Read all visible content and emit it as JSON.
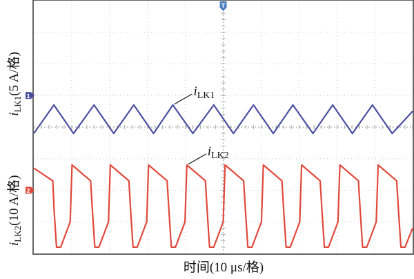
{
  "chart_data": {
    "type": "line",
    "x": {
      "label": "时间(10 μs/格)",
      "unit": "μs",
      "range": [
        0,
        100
      ],
      "major_step": 10
    },
    "grid": true,
    "ch1": {
      "italic": "i",
      "sub": "LK1",
      "scale_suffix": "(5 A/格)",
      "color": "#4a4fa0",
      "marker_glyph": "1",
      "points": [
        [
          0,
          -1.2
        ],
        [
          5.3,
          -0.3
        ],
        [
          10.5,
          -1.2
        ],
        [
          15.9,
          -0.3
        ],
        [
          21.1,
          -1.2
        ],
        [
          26.4,
          -0.3
        ],
        [
          31.6,
          -1.2
        ],
        [
          36.7,
          -0.3
        ],
        [
          42.0,
          -1.2
        ],
        [
          47.5,
          -0.3
        ],
        [
          52.7,
          -1.2
        ],
        [
          58.0,
          -0.3
        ],
        [
          63.2,
          -1.2
        ],
        [
          68.4,
          -0.3
        ],
        [
          73.7,
          -1.2
        ],
        [
          78.9,
          -0.3
        ],
        [
          84.1,
          -1.2
        ],
        [
          89.4,
          -0.3
        ],
        [
          94.6,
          -1.2
        ],
        [
          100,
          -0.5
        ]
      ]
    },
    "ch2": {
      "italic": "i",
      "sub": "LK2",
      "scale_suffix": "(10 A/格)",
      "color": "#e0483a",
      "marker_glyph": "2",
      "points": [
        [
          0,
          0.7
        ],
        [
          5.0,
          0.3
        ],
        [
          5.4,
          -0.7
        ],
        [
          6.0,
          -1.8
        ],
        [
          7.1,
          -1.8
        ],
        [
          9.6,
          -1.0
        ],
        [
          10.1,
          0.8
        ],
        [
          15.0,
          0.3
        ],
        [
          15.5,
          -0.7
        ],
        [
          16.1,
          -1.8
        ],
        [
          17.2,
          -1.8
        ],
        [
          19.7,
          -1.0
        ],
        [
          20.2,
          0.8
        ],
        [
          25.1,
          0.3
        ],
        [
          25.6,
          -0.7
        ],
        [
          26.2,
          -1.8
        ],
        [
          27.3,
          -1.8
        ],
        [
          29.8,
          -1.0
        ],
        [
          30.3,
          0.8
        ],
        [
          35.2,
          0.3
        ],
        [
          35.7,
          -0.7
        ],
        [
          36.3,
          -1.8
        ],
        [
          37.4,
          -1.8
        ],
        [
          39.9,
          -1.0
        ],
        [
          40.4,
          0.8
        ],
        [
          45.3,
          0.3
        ],
        [
          45.8,
          -0.7
        ],
        [
          46.4,
          -1.8
        ],
        [
          47.5,
          -1.8
        ],
        [
          50.0,
          -1.0
        ],
        [
          50.5,
          0.8
        ],
        [
          55.4,
          0.3
        ],
        [
          55.9,
          -0.7
        ],
        [
          56.5,
          -1.8
        ],
        [
          57.6,
          -1.8
        ],
        [
          60.1,
          -1.0
        ],
        [
          60.6,
          0.8
        ],
        [
          65.5,
          0.3
        ],
        [
          66.0,
          -0.7
        ],
        [
          66.6,
          -1.8
        ],
        [
          67.7,
          -1.8
        ],
        [
          70.2,
          -1.0
        ],
        [
          70.7,
          0.8
        ],
        [
          75.6,
          0.3
        ],
        [
          76.1,
          -0.7
        ],
        [
          76.7,
          -1.8
        ],
        [
          77.8,
          -1.8
        ],
        [
          80.3,
          -1.0
        ],
        [
          80.8,
          0.8
        ],
        [
          85.7,
          0.3
        ],
        [
          86.2,
          -0.7
        ],
        [
          86.8,
          -1.8
        ],
        [
          87.9,
          -1.8
        ],
        [
          90.4,
          -1.0
        ],
        [
          90.9,
          0.8
        ],
        [
          95.8,
          0.3
        ],
        [
          96.3,
          -0.7
        ],
        [
          96.9,
          -1.8
        ],
        [
          98.0,
          -1.8
        ],
        [
          100,
          -1.2
        ]
      ]
    },
    "trigger_glyph": "T",
    "annotations": [
      {
        "id": "ann-ilk1",
        "italic": "i",
        "sub": "LK1",
        "target_channel": "ch1",
        "target_x": 36.7
      },
      {
        "id": "ann-ilk2",
        "italic": "i",
        "sub": "LK2",
        "target_channel": "ch2",
        "target_x": 40.4
      }
    ]
  }
}
